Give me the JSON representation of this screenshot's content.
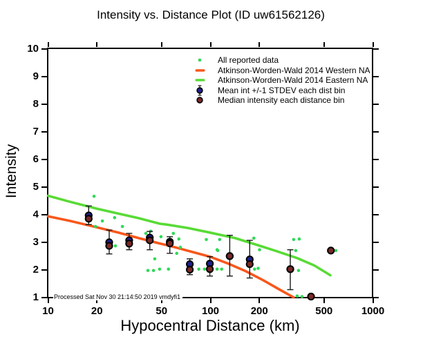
{
  "title": "Intensity vs. Distance Plot (ID uw61562126)",
  "event_id": "uw61562126",
  "axes": {
    "xlabel": "Hypocentral Distance (km)",
    "ylabel": "Intensity",
    "x_scale": "log",
    "x_range": [
      10,
      1000
    ],
    "y_range": [
      1,
      10
    ],
    "x_ticks": [
      10,
      20,
      50,
      100,
      200,
      500,
      1000
    ],
    "y_ticks": [
      1,
      2,
      3,
      4,
      5,
      6,
      7,
      8,
      9,
      10
    ]
  },
  "footnote": "Processed Sat Nov 30 21:14:50 2019 vmdyfi1",
  "legend": [
    {
      "marker": "green-dot",
      "label": "All reported data"
    },
    {
      "marker": "orange-line",
      "label": "Atkinson-Worden-Wald 2014 Western NA"
    },
    {
      "marker": "green-line",
      "label": "Atkinson-Worden-Wald 2014 Eastern NA"
    },
    {
      "marker": "blue-circle-errorbar",
      "label": "Mean int +/-1 STDEV each dist bin"
    },
    {
      "marker": "darkred-circle",
      "label": "Median intensity each distance bin"
    }
  ],
  "colors": {
    "dot_green": "#30d957",
    "line_green": "#58db35",
    "line_orange": "#f8571b",
    "mean_blue": "#1f1f8f",
    "median_darkred": "#7a2828",
    "errorbar": "#1a1a1a",
    "axis": "#000000",
    "background": "#ffffff"
  },
  "chart_data": {
    "type": "scatter",
    "title": "Intensity vs. Distance Plot (ID uw61562126)",
    "xlabel": "Hypocentral Distance (km)",
    "ylabel": "Intensity",
    "xscale": "log",
    "xlim": [
      10,
      1000
    ],
    "ylim": [
      1,
      10
    ],
    "grid": false,
    "legend_position": "top-center-inside",
    "series": [
      {
        "name": "All reported data",
        "type": "scatter",
        "points": [
          [
            19.2,
            4.67
          ],
          [
            21.6,
            3.78
          ],
          [
            19.6,
            3.58
          ],
          [
            25.7,
            3.9
          ],
          [
            28.7,
            3.58
          ],
          [
            26,
            2.88
          ],
          [
            40,
            3.33
          ],
          [
            42.8,
            3.41
          ],
          [
            45.4,
            2.41
          ],
          [
            41.2,
            1.99
          ],
          [
            44.6,
            1.99
          ],
          [
            48.6,
            2.04
          ],
          [
            49.6,
            3.21
          ],
          [
            59.1,
            3.33
          ],
          [
            63.9,
            3.13
          ],
          [
            65.3,
            2.83
          ],
          [
            62,
            2.61
          ],
          [
            55.1,
            2.04
          ],
          [
            84.7,
            2.04
          ],
          [
            91.8,
            2.04
          ],
          [
            96.2,
            2.04
          ],
          [
            94.3,
            3.11
          ],
          [
            109.9,
            2.74
          ],
          [
            109.9,
            2.04
          ],
          [
            117.2,
            2.04
          ],
          [
            113.9,
            3.11
          ],
          [
            110.9,
            2.71
          ],
          [
            185.1,
            3.16
          ],
          [
            200.5,
            2.74
          ],
          [
            186.9,
            2.04
          ],
          [
            196.6,
            2.07
          ],
          [
            325.4,
            3.11
          ],
          [
            352,
            3.13
          ],
          [
            335.2,
            2.71
          ],
          [
            348.6,
            1.99
          ],
          [
            341.8,
            1.07
          ],
          [
            365.8,
            1.05
          ],
          [
            591.1,
            2.71
          ]
        ]
      },
      {
        "name": "Atkinson-Worden-Wald 2014 Western NA",
        "type": "line",
        "points": [
          [
            10,
            3.95
          ],
          [
            13.7,
            3.78
          ],
          [
            20,
            3.55
          ],
          [
            27,
            3.36
          ],
          [
            36.2,
            3.16
          ],
          [
            47.7,
            2.98
          ],
          [
            56.3,
            2.88
          ],
          [
            71.9,
            2.71
          ],
          [
            99.1,
            2.49
          ],
          [
            128.7,
            2.24
          ],
          [
            164.5,
            1.97
          ],
          [
            211,
            1.64
          ],
          [
            267,
            1.3
          ],
          [
            325,
            1.02
          ]
        ]
      },
      {
        "name": "Atkinson-Worden-Wald 2014 Eastern NA",
        "type": "line",
        "points": [
          [
            10,
            4.69
          ],
          [
            13.7,
            4.47
          ],
          [
            20,
            4.22
          ],
          [
            27,
            4.05
          ],
          [
            36.2,
            3.88
          ],
          [
            48.7,
            3.68
          ],
          [
            53.6,
            3.65
          ],
          [
            71.9,
            3.53
          ],
          [
            99.1,
            3.36
          ],
          [
            142,
            3.16
          ],
          [
            190,
            2.93
          ],
          [
            255,
            2.69
          ],
          [
            341,
            2.44
          ],
          [
            437,
            2.17
          ],
          [
            547,
            1.82
          ]
        ]
      },
      {
        "name": "Mean int +/-1 STDEV each dist bin",
        "type": "scatter-errorbar",
        "points": [
          {
            "d": 17.8,
            "mean": 3.98,
            "lo": 3.65,
            "hi": 4.32
          },
          {
            "d": 23.8,
            "mean": 3.01,
            "lo": 2.59,
            "hi": 3.45
          },
          {
            "d": 31.6,
            "mean": 3.08,
            "lo": 2.74,
            "hi": 3.33
          },
          {
            "d": 42.3,
            "mean": 3.18,
            "lo": 2.74,
            "hi": 3.4
          },
          {
            "d": 56.2,
            "mean": 3.03,
            "lo": 2.61,
            "hi": 3.21
          },
          {
            "d": 74.6,
            "mean": 2.22,
            "lo": 1.84,
            "hi": 2.41
          },
          {
            "d": 99.1,
            "mean": 2.24,
            "lo": 1.79,
            "hi": 2.49
          },
          {
            "d": 131.5,
            "mean": 2.51,
            "lo": 1.79,
            "hi": 3.26
          },
          {
            "d": 174.5,
            "mean": 2.39,
            "lo": 1.72,
            "hi": 3.08
          },
          {
            "d": 310,
            "mean": 2.04,
            "lo": 1.3,
            "hi": 2.74
          }
        ]
      },
      {
        "name": "Median intensity each distance bin",
        "type": "scatter",
        "points": [
          [
            17.8,
            3.86
          ],
          [
            23.8,
            2.88
          ],
          [
            31.6,
            2.96
          ],
          [
            42.3,
            3.08
          ],
          [
            56.2,
            2.97
          ],
          [
            74.6,
            2.02
          ],
          [
            99.1,
            2.04
          ],
          [
            131.5,
            2.51
          ],
          [
            174.5,
            2.22
          ],
          [
            310,
            2.04
          ],
          [
            416,
            1.05
          ],
          [
            551,
            2.71
          ]
        ]
      }
    ]
  }
}
